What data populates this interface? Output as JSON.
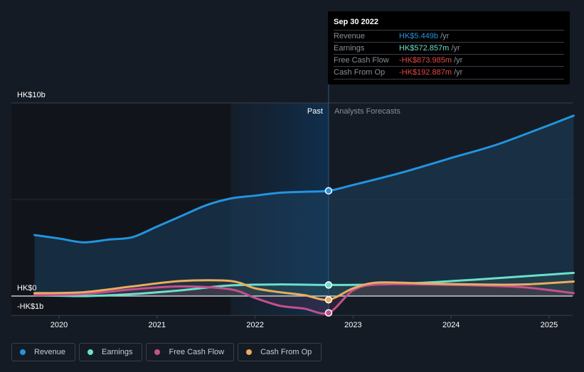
{
  "tooltip": {
    "date": "Sep 30 2022",
    "rows": [
      {
        "label": "Revenue",
        "value": "HK$5.449b",
        "unit": "/yr",
        "color": "#2394df"
      },
      {
        "label": "Earnings",
        "value": "HK$572.857m",
        "unit": "/yr",
        "color": "#6be0cc"
      },
      {
        "label": "Free Cash Flow",
        "value": "-HK$873.985m",
        "unit": "/yr",
        "color": "#e64848"
      },
      {
        "label": "Cash From Op",
        "value": "-HK$192.887m",
        "unit": "/yr",
        "color": "#e64848"
      }
    ]
  },
  "legend": [
    {
      "label": "Revenue",
      "color": "#2394df"
    },
    {
      "label": "Earnings",
      "color": "#6be0cc"
    },
    {
      "label": "Free Cash Flow",
      "color": "#c4508f"
    },
    {
      "label": "Cash From Op",
      "color": "#e9ad5e"
    }
  ],
  "chart_data": {
    "type": "line",
    "title": "",
    "xlabel": "",
    "ylabel": "",
    "y_unit": "HK$ billions",
    "ylim": [
      -1,
      10
    ],
    "y_ticks": [
      {
        "value": 10,
        "label": "HK$10b"
      },
      {
        "value": 0,
        "label": "HK$0"
      },
      {
        "value": -1,
        "label": "-HK$1b"
      }
    ],
    "x_ticks": [
      2020,
      2021,
      2022,
      2023,
      2024,
      2025
    ],
    "xlim": [
      2019.75,
      2025.25
    ],
    "divider": {
      "x": 2022.75,
      "past_label": "Past",
      "forecast_label": "Analysts Forecasts"
    },
    "highlight_start": 2021.75,
    "series": [
      {
        "name": "Revenue",
        "color": "#2394df",
        "points": [
          [
            2019.75,
            3.16
          ],
          [
            2020.0,
            2.98
          ],
          [
            2020.25,
            2.78
          ],
          [
            2020.5,
            2.92
          ],
          [
            2020.75,
            3.05
          ],
          [
            2021.0,
            3.6
          ],
          [
            2021.25,
            4.15
          ],
          [
            2021.5,
            4.7
          ],
          [
            2021.75,
            5.05
          ],
          [
            2022.0,
            5.2
          ],
          [
            2022.25,
            5.35
          ],
          [
            2022.5,
            5.4
          ],
          [
            2022.75,
            5.449
          ],
          [
            2023.0,
            5.75
          ],
          [
            2023.5,
            6.4
          ],
          [
            2024.0,
            7.15
          ],
          [
            2024.5,
            7.9
          ],
          [
            2025.25,
            9.34
          ]
        ]
      },
      {
        "name": "Earnings",
        "color": "#6be0cc",
        "points": [
          [
            2019.75,
            0.05
          ],
          [
            2020.25,
            0.0
          ],
          [
            2020.75,
            0.1
          ],
          [
            2021.25,
            0.3
          ],
          [
            2021.75,
            0.55
          ],
          [
            2022.25,
            0.6
          ],
          [
            2022.75,
            0.573
          ],
          [
            2023.25,
            0.6
          ],
          [
            2023.75,
            0.7
          ],
          [
            2024.25,
            0.85
          ],
          [
            2025.25,
            1.2
          ]
        ]
      },
      {
        "name": "Free Cash Flow",
        "color": "#c4508f",
        "points": [
          [
            2019.75,
            0.05
          ],
          [
            2020.25,
            0.1
          ],
          [
            2020.75,
            0.35
          ],
          [
            2021.25,
            0.5
          ],
          [
            2021.75,
            0.35
          ],
          [
            2022.0,
            -0.1
          ],
          [
            2022.25,
            -0.5
          ],
          [
            2022.5,
            -0.65
          ],
          [
            2022.75,
            -0.874
          ],
          [
            2023.0,
            0.3
          ],
          [
            2023.25,
            0.6
          ],
          [
            2023.75,
            0.6
          ],
          [
            2024.25,
            0.55
          ],
          [
            2024.75,
            0.45
          ],
          [
            2025.25,
            0.15
          ]
        ]
      },
      {
        "name": "Cash From Op",
        "color": "#e9ad5e",
        "points": [
          [
            2019.75,
            0.15
          ],
          [
            2020.25,
            0.2
          ],
          [
            2020.75,
            0.5
          ],
          [
            2021.25,
            0.78
          ],
          [
            2021.75,
            0.78
          ],
          [
            2022.0,
            0.4
          ],
          [
            2022.25,
            0.2
          ],
          [
            2022.5,
            0.05
          ],
          [
            2022.75,
            -0.193
          ],
          [
            2023.0,
            0.4
          ],
          [
            2023.25,
            0.7
          ],
          [
            2023.75,
            0.65
          ],
          [
            2024.25,
            0.6
          ],
          [
            2024.75,
            0.6
          ],
          [
            2025.25,
            0.75
          ]
        ]
      }
    ]
  }
}
